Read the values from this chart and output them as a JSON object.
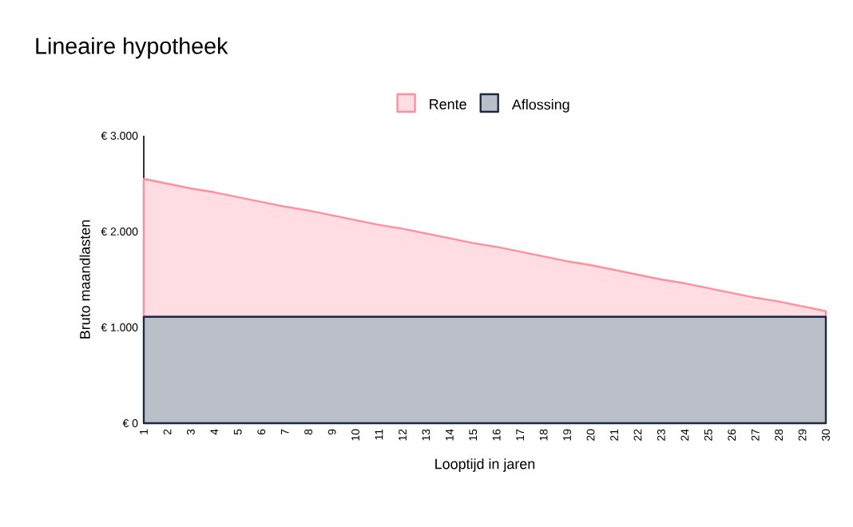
{
  "chart_data": {
    "type": "area",
    "title": "Lineaire hypotheek",
    "xlabel": "Looptijd in jaren",
    "ylabel": "Bruto maandlasten",
    "categories": [
      "1",
      "2",
      "3",
      "4",
      "5",
      "6",
      "7",
      "8",
      "9",
      "10",
      "11",
      "12",
      "13",
      "14",
      "15",
      "16",
      "17",
      "18",
      "19",
      "20",
      "21",
      "22",
      "23",
      "24",
      "25",
      "26",
      "27",
      "28",
      "29",
      "30"
    ],
    "stacked": true,
    "legend": "top",
    "ylim": [
      0,
      3000
    ],
    "yticks": [
      {
        "value": 0,
        "label": "€ 0"
      },
      {
        "value": 1000,
        "label": "€ 1.000"
      },
      {
        "value": 2000,
        "label": "€ 2.000"
      },
      {
        "value": 3000,
        "label": "€ 3.000"
      }
    ],
    "series": [
      {
        "name": "Aflossing",
        "color": "#1b2a44",
        "values": [
          1110,
          1110,
          1110,
          1110,
          1110,
          1110,
          1110,
          1110,
          1110,
          1110,
          1110,
          1110,
          1110,
          1110,
          1110,
          1110,
          1110,
          1110,
          1110,
          1110,
          1110,
          1110,
          1110,
          1110,
          1110,
          1110,
          1110,
          1110,
          1110,
          1110
        ]
      },
      {
        "name": "Rente",
        "color": "#ff8f9e",
        "values": [
          1440,
          1390,
          1340,
          1300,
          1250,
          1200,
          1150,
          1110,
          1060,
          1010,
          960,
          920,
          870,
          820,
          770,
          730,
          680,
          630,
          580,
          540,
          490,
          440,
          390,
          350,
          300,
          250,
          200,
          160,
          110,
          60
        ]
      }
    ]
  }
}
